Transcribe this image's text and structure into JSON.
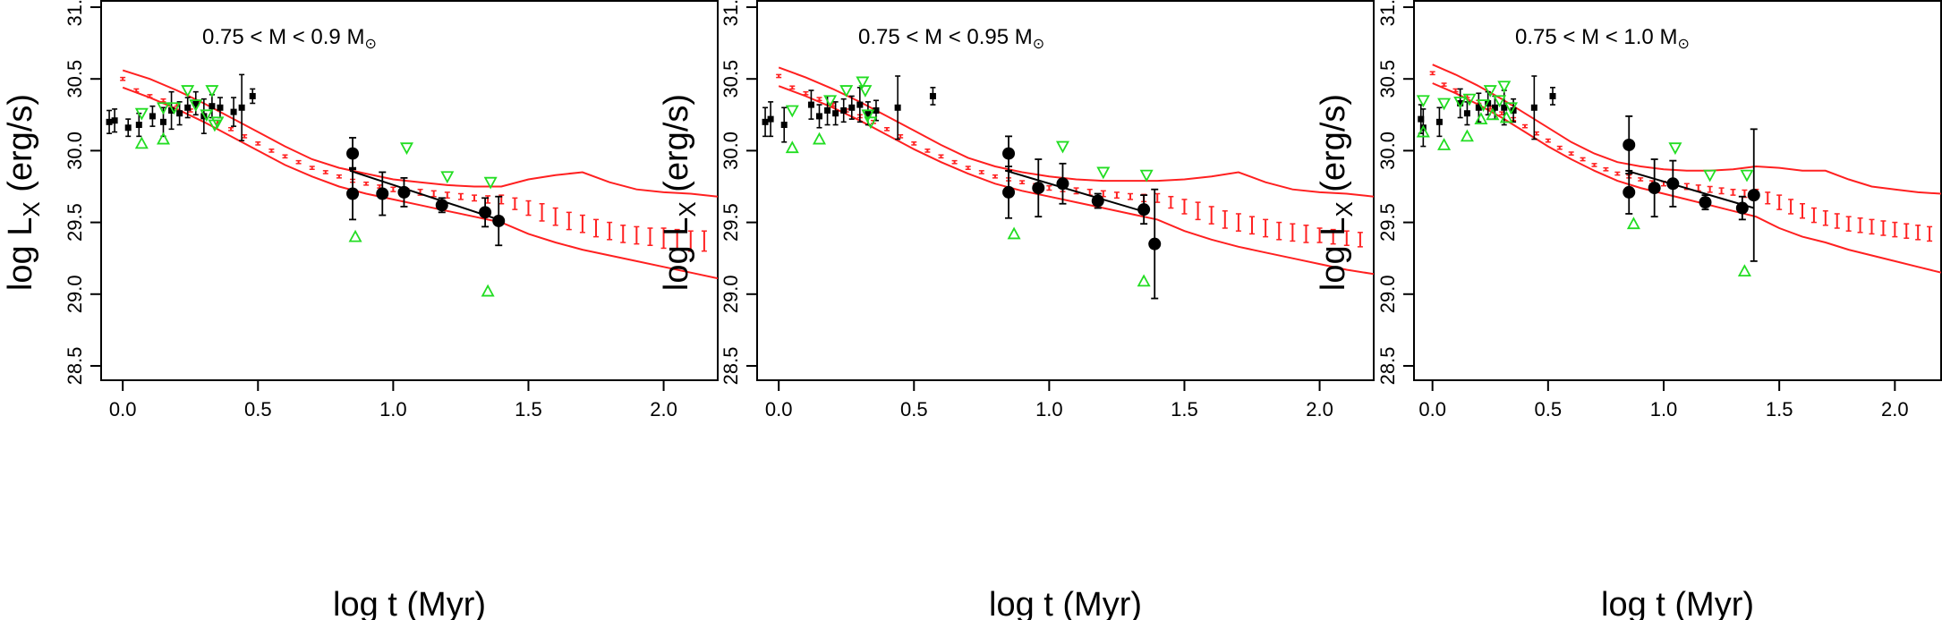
{
  "figure": {
    "xlabel": "log t (Myr)",
    "ylabel_main": "log L",
    "ylabel_sub": "X",
    "ylabel_unit": "(erg/s)",
    "xlim": [
      -0.08,
      2.2
    ],
    "ylim": [
      28.4,
      31.05
    ],
    "xticks": [
      "0.0",
      "0.5",
      "1.0",
      "1.5",
      "2.0"
    ],
    "yticks": [
      "28.5",
      "29.0",
      "29.5",
      "30.0",
      "30.5",
      "31.0"
    ],
    "colors": {
      "model": "#ff2020",
      "upper_limit": "#22dd22",
      "data": "#000000"
    }
  },
  "chart_data": [
    {
      "type": "scatter",
      "title_prefix": "0.75 < M < 0.9 M",
      "title_symbol": "⊙",
      "model_mean": {
        "x": [
          0.0,
          0.05,
          0.1,
          0.15,
          0.2,
          0.25,
          0.3,
          0.35,
          0.4,
          0.45,
          0.5,
          0.55,
          0.6,
          0.65,
          0.7,
          0.75,
          0.8,
          0.85,
          0.9,
          0.95,
          1.0,
          1.05,
          1.1,
          1.15,
          1.2,
          1.25,
          1.3,
          1.35,
          1.4,
          1.45,
          1.5,
          1.55,
          1.6,
          1.65,
          1.7,
          1.75,
          1.8,
          1.85,
          1.9,
          1.95,
          2.0,
          2.05,
          2.1,
          2.15
        ],
        "y": [
          30.5,
          30.42,
          30.38,
          30.35,
          30.32,
          30.28,
          30.24,
          30.2,
          30.15,
          30.1,
          30.05,
          30.0,
          29.96,
          29.92,
          29.88,
          29.85,
          29.82,
          29.79,
          29.77,
          29.75,
          29.73,
          29.72,
          29.71,
          29.7,
          29.69,
          29.68,
          29.67,
          29.66,
          29.66,
          29.63,
          29.6,
          29.57,
          29.54,
          29.51,
          29.49,
          29.46,
          29.44,
          29.42,
          29.41,
          29.4,
          29.39,
          29.38,
          29.37,
          29.37
        ],
        "err": [
          0.01,
          0.01,
          0.01,
          0.01,
          0.01,
          0.01,
          0.01,
          0.01,
          0.01,
          0.01,
          0.01,
          0.01,
          0.01,
          0.01,
          0.01,
          0.01,
          0.01,
          0.01,
          0.01,
          0.01,
          0.015,
          0.015,
          0.02,
          0.02,
          0.02,
          0.02,
          0.02,
          0.025,
          0.03,
          0.04,
          0.05,
          0.06,
          0.06,
          0.06,
          0.06,
          0.06,
          0.06,
          0.06,
          0.06,
          0.06,
          0.07,
          0.07,
          0.07,
          0.07
        ]
      },
      "model_upper": {
        "x": [
          0.0,
          0.1,
          0.2,
          0.3,
          0.4,
          0.5,
          0.6,
          0.7,
          0.8,
          0.9,
          1.0,
          1.1,
          1.2,
          1.3,
          1.4,
          1.5,
          1.6,
          1.7,
          1.8,
          1.9,
          2.0,
          2.1,
          2.2
        ],
        "y": [
          30.56,
          30.5,
          30.42,
          30.33,
          30.23,
          30.13,
          30.03,
          29.94,
          29.88,
          29.84,
          29.8,
          29.78,
          29.76,
          29.75,
          29.75,
          29.8,
          29.83,
          29.85,
          29.78,
          29.73,
          29.71,
          29.7,
          29.68
        ]
      },
      "model_lower": {
        "x": [
          0.0,
          0.1,
          0.2,
          0.3,
          0.4,
          0.5,
          0.6,
          0.7,
          0.8,
          0.9,
          1.0,
          1.1,
          1.2,
          1.3,
          1.4,
          1.5,
          1.6,
          1.7,
          1.8,
          1.9,
          2.0,
          2.1,
          2.2
        ],
        "y": [
          30.44,
          30.37,
          30.29,
          30.2,
          30.1,
          30.0,
          29.9,
          29.82,
          29.75,
          29.7,
          29.66,
          29.62,
          29.58,
          29.54,
          29.5,
          29.42,
          29.36,
          29.31,
          29.27,
          29.23,
          29.19,
          29.15,
          29.11
        ]
      },
      "squares": {
        "x": [
          -0.05,
          -0.03,
          0.02,
          0.06,
          0.11,
          0.15,
          0.18,
          0.21,
          0.24,
          0.27,
          0.3,
          0.33,
          0.36,
          0.41,
          0.44,
          0.48
        ],
        "y": [
          30.2,
          30.21,
          30.16,
          30.18,
          30.24,
          30.2,
          30.28,
          30.26,
          30.3,
          30.33,
          30.24,
          30.31,
          30.3,
          30.27,
          30.3,
          30.38
        ],
        "err": [
          0.08,
          0.08,
          0.06,
          0.08,
          0.07,
          0.1,
          0.13,
          0.08,
          0.07,
          0.08,
          0.12,
          0.08,
          0.07,
          0.1,
          0.23,
          0.05
        ]
      },
      "circles": {
        "x": [
          0.85,
          0.85,
          0.96,
          1.04,
          1.18,
          1.34,
          1.39
        ],
        "y": [
          29.98,
          29.7,
          29.7,
          29.71,
          29.62,
          29.57,
          29.51
        ],
        "err": [
          0.11,
          0.18,
          0.15,
          0.1,
          0.05,
          0.1,
          0.17
        ]
      },
      "trend_line": {
        "x": [
          0.84,
          1.39
        ],
        "y": [
          29.86,
          29.52
        ]
      },
      "triangles_up": {
        "x": [
          0.07,
          0.15,
          0.86,
          1.35
        ],
        "y": [
          30.05,
          30.08,
          29.4,
          29.02
        ]
      },
      "triangles_down": {
        "x": [
          0.07,
          0.15,
          0.19,
          0.24,
          0.27,
          0.31,
          0.33,
          0.34,
          0.35,
          1.05,
          1.2,
          1.36
        ],
        "y": [
          30.26,
          30.3,
          30.3,
          30.42,
          30.32,
          30.25,
          30.42,
          30.18,
          30.2,
          30.02,
          29.82,
          29.78
        ]
      }
    },
    {
      "type": "scatter",
      "title_prefix": "0.75 < M < 0.95 M",
      "title_symbol": "⊙",
      "model_mean": {
        "x": [
          0.0,
          0.05,
          0.1,
          0.15,
          0.2,
          0.25,
          0.3,
          0.35,
          0.4,
          0.45,
          0.5,
          0.55,
          0.6,
          0.65,
          0.7,
          0.75,
          0.8,
          0.85,
          0.9,
          0.95,
          1.0,
          1.05,
          1.1,
          1.15,
          1.2,
          1.25,
          1.3,
          1.35,
          1.4,
          1.45,
          1.5,
          1.55,
          1.6,
          1.65,
          1.7,
          1.75,
          1.8,
          1.85,
          1.9,
          1.95,
          2.0,
          2.05,
          2.1,
          2.15
        ],
        "y": [
          30.52,
          30.44,
          30.4,
          30.36,
          30.32,
          30.28,
          30.24,
          30.2,
          30.15,
          30.1,
          30.05,
          30.0,
          29.96,
          29.92,
          29.88,
          29.85,
          29.82,
          29.8,
          29.78,
          29.76,
          29.74,
          29.73,
          29.72,
          29.71,
          29.7,
          29.69,
          29.68,
          29.67,
          29.67,
          29.64,
          29.61,
          29.58,
          29.55,
          29.52,
          29.5,
          29.48,
          29.46,
          29.44,
          29.43,
          29.42,
          29.41,
          29.4,
          29.39,
          29.38
        ],
        "err": [
          0.01,
          0.01,
          0.01,
          0.01,
          0.01,
          0.01,
          0.01,
          0.01,
          0.01,
          0.01,
          0.01,
          0.01,
          0.01,
          0.01,
          0.01,
          0.01,
          0.01,
          0.01,
          0.01,
          0.01,
          0.015,
          0.015,
          0.02,
          0.02,
          0.02,
          0.02,
          0.02,
          0.025,
          0.03,
          0.04,
          0.05,
          0.06,
          0.06,
          0.06,
          0.06,
          0.06,
          0.06,
          0.06,
          0.06,
          0.06,
          0.05,
          0.05,
          0.05,
          0.05
        ]
      },
      "model_upper": {
        "x": [
          0.0,
          0.1,
          0.2,
          0.3,
          0.4,
          0.5,
          0.6,
          0.7,
          0.8,
          0.9,
          1.0,
          1.1,
          1.2,
          1.3,
          1.4,
          1.5,
          1.6,
          1.7,
          1.8,
          1.9,
          2.0,
          2.1,
          2.2
        ],
        "y": [
          30.58,
          30.51,
          30.43,
          30.34,
          30.24,
          30.14,
          30.04,
          29.95,
          29.89,
          29.85,
          29.82,
          29.8,
          29.79,
          29.79,
          29.79,
          29.8,
          29.82,
          29.85,
          29.78,
          29.73,
          29.71,
          29.7,
          29.68
        ]
      },
      "model_lower": {
        "x": [
          0.0,
          0.1,
          0.2,
          0.3,
          0.4,
          0.5,
          0.6,
          0.7,
          0.8,
          0.9,
          1.0,
          1.1,
          1.2,
          1.3,
          1.4,
          1.5,
          1.6,
          1.7,
          1.8,
          1.9,
          2.0,
          2.1,
          2.2
        ],
        "y": [
          30.45,
          30.38,
          30.3,
          30.21,
          30.11,
          30.01,
          29.92,
          29.84,
          29.77,
          29.72,
          29.68,
          29.64,
          29.6,
          29.56,
          29.52,
          29.44,
          29.38,
          29.33,
          29.29,
          29.25,
          29.21,
          29.17,
          29.14
        ]
      },
      "squares": {
        "x": [
          -0.05,
          -0.03,
          0.02,
          0.12,
          0.15,
          0.18,
          0.21,
          0.24,
          0.27,
          0.3,
          0.33,
          0.36,
          0.44,
          0.57
        ],
        "y": [
          30.2,
          30.22,
          30.18,
          30.32,
          30.24,
          30.28,
          30.26,
          30.28,
          30.3,
          30.32,
          30.26,
          30.28,
          30.3,
          30.38
        ],
        "err": [
          0.1,
          0.12,
          0.12,
          0.1,
          0.08,
          0.1,
          0.08,
          0.08,
          0.08,
          0.12,
          0.08,
          0.07,
          0.22,
          0.06
        ]
      },
      "circles": {
        "x": [
          0.85,
          0.85,
          0.96,
          1.05,
          1.18,
          1.35,
          1.39
        ],
        "y": [
          29.98,
          29.71,
          29.74,
          29.77,
          29.65,
          29.59,
          29.35
        ],
        "err": [
          0.12,
          0.18,
          0.2,
          0.14,
          0.05,
          0.1,
          0.38
        ]
      },
      "trend_line": {
        "x": [
          0.84,
          1.36
        ],
        "y": [
          29.86,
          29.57
        ]
      },
      "triangles_up": {
        "x": [
          0.05,
          0.15,
          0.87,
          1.35
        ],
        "y": [
          30.02,
          30.08,
          29.42,
          29.09
        ]
      },
      "triangles_down": {
        "x": [
          0.05,
          0.19,
          0.25,
          0.31,
          0.32,
          0.33,
          0.34,
          1.05,
          1.2,
          1.36
        ],
        "y": [
          30.28,
          30.35,
          30.42,
          30.48,
          30.42,
          30.25,
          30.2,
          30.03,
          29.85,
          29.83
        ]
      }
    },
    {
      "type": "scatter",
      "title_prefix": "0.75 < M < 1.0 M",
      "title_symbol": "⊙",
      "model_mean": {
        "x": [
          0.0,
          0.05,
          0.1,
          0.15,
          0.2,
          0.25,
          0.3,
          0.35,
          0.4,
          0.45,
          0.5,
          0.55,
          0.6,
          0.65,
          0.7,
          0.75,
          0.8,
          0.85,
          0.9,
          0.95,
          1.0,
          1.05,
          1.1,
          1.15,
          1.2,
          1.25,
          1.3,
          1.35,
          1.4,
          1.45,
          1.5,
          1.55,
          1.6,
          1.65,
          1.7,
          1.75,
          1.8,
          1.85,
          1.9,
          1.95,
          2.0,
          2.05,
          2.1,
          2.15
        ],
        "y": [
          30.54,
          30.46,
          30.42,
          30.38,
          30.34,
          30.3,
          30.26,
          30.22,
          30.17,
          30.12,
          30.07,
          30.02,
          29.98,
          29.94,
          29.9,
          29.87,
          29.84,
          29.82,
          29.8,
          29.78,
          29.77,
          29.76,
          29.75,
          29.74,
          29.73,
          29.72,
          29.71,
          29.7,
          29.7,
          29.67,
          29.64,
          29.61,
          29.58,
          29.55,
          29.53,
          29.51,
          29.49,
          29.48,
          29.47,
          29.46,
          29.45,
          29.44,
          29.43,
          29.42
        ],
        "err": [
          0.01,
          0.01,
          0.01,
          0.01,
          0.01,
          0.01,
          0.01,
          0.01,
          0.01,
          0.01,
          0.01,
          0.01,
          0.01,
          0.01,
          0.01,
          0.01,
          0.01,
          0.01,
          0.01,
          0.01,
          0.015,
          0.015,
          0.02,
          0.02,
          0.02,
          0.02,
          0.02,
          0.025,
          0.03,
          0.04,
          0.05,
          0.05,
          0.05,
          0.05,
          0.05,
          0.05,
          0.05,
          0.05,
          0.05,
          0.05,
          0.05,
          0.05,
          0.05,
          0.05
        ]
      },
      "model_upper": {
        "x": [
          0.0,
          0.1,
          0.2,
          0.3,
          0.4,
          0.5,
          0.6,
          0.7,
          0.8,
          0.9,
          1.0,
          1.1,
          1.2,
          1.3,
          1.4,
          1.5,
          1.6,
          1.7,
          1.8,
          1.9,
          2.0,
          2.1,
          2.2
        ],
        "y": [
          30.6,
          30.53,
          30.45,
          30.36,
          30.26,
          30.16,
          30.06,
          29.98,
          29.92,
          29.89,
          29.87,
          29.86,
          29.86,
          29.87,
          29.89,
          29.88,
          29.86,
          29.86,
          29.8,
          29.75,
          29.73,
          29.71,
          29.7
        ]
      },
      "model_lower": {
        "x": [
          0.0,
          0.1,
          0.2,
          0.3,
          0.4,
          0.5,
          0.6,
          0.7,
          0.8,
          0.9,
          1.0,
          1.1,
          1.2,
          1.3,
          1.4,
          1.5,
          1.6,
          1.7,
          1.8,
          1.9,
          2.0,
          2.1,
          2.2
        ],
        "y": [
          30.47,
          30.4,
          30.32,
          30.23,
          30.13,
          30.03,
          29.94,
          29.86,
          29.79,
          29.74,
          29.7,
          29.66,
          29.62,
          29.58,
          29.54,
          29.46,
          29.4,
          29.36,
          29.31,
          29.27,
          29.23,
          29.19,
          29.15
        ]
      },
      "squares": {
        "x": [
          -0.05,
          -0.04,
          0.03,
          0.12,
          0.15,
          0.2,
          0.24,
          0.27,
          0.31,
          0.35,
          0.44,
          0.52
        ],
        "y": [
          30.22,
          30.16,
          30.2,
          30.33,
          30.26,
          30.3,
          30.33,
          30.3,
          30.3,
          30.28,
          30.3,
          30.38
        ],
        "err": [
          0.1,
          0.13,
          0.1,
          0.1,
          0.08,
          0.1,
          0.08,
          0.08,
          0.12,
          0.08,
          0.22,
          0.06
        ]
      },
      "circles": {
        "x": [
          0.85,
          0.85,
          0.96,
          1.04,
          1.18,
          1.34,
          1.39
        ],
        "y": [
          30.04,
          29.71,
          29.74,
          29.77,
          29.64,
          29.6,
          29.69
        ],
        "err": [
          0.2,
          0.15,
          0.2,
          0.16,
          0.05,
          0.08,
          0.46
        ]
      },
      "trend_line": {
        "x": [
          0.84,
          1.39
        ],
        "y": [
          29.86,
          29.6
        ]
      },
      "triangles_up": {
        "x": [
          -0.04,
          0.05,
          0.15,
          0.21,
          0.26,
          0.32,
          0.87,
          1.35
        ],
        "y": [
          30.13,
          30.04,
          30.1,
          30.22,
          30.25,
          30.23,
          29.49,
          29.16
        ]
      },
      "triangles_down": {
        "x": [
          -0.04,
          0.05,
          0.12,
          0.16,
          0.22,
          0.25,
          0.29,
          0.31,
          0.34,
          1.05,
          1.2,
          1.36
        ],
        "y": [
          30.35,
          30.33,
          30.34,
          30.36,
          30.32,
          30.42,
          30.35,
          30.45,
          30.3,
          30.02,
          29.83,
          29.83
        ]
      }
    }
  ]
}
